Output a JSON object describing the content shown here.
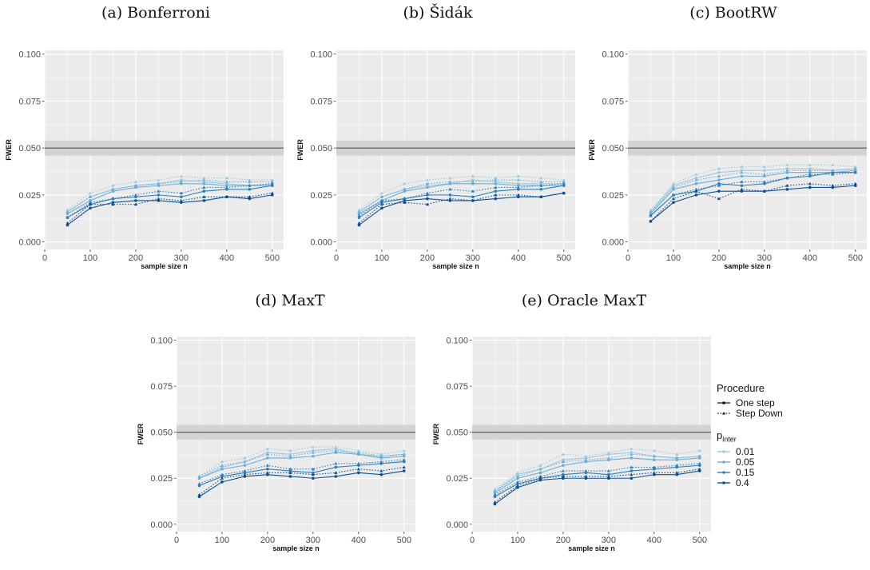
{
  "chart_data": [
    {
      "type": "line",
      "title": "(a) Bonferroni",
      "xlabel": "sample size n",
      "ylabel": "FWER",
      "xlim": [
        0,
        525
      ],
      "ylim": [
        -0.004,
        0.102
      ],
      "x_ticks": [
        "0",
        "100",
        "200",
        "300",
        "400",
        "500"
      ],
      "y_ticks": [
        "0.000",
        "0.025",
        "0.050",
        "0.075",
        "0.100"
      ],
      "reference_line": 0.05,
      "reference_band": [
        0.046,
        0.054
      ],
      "x": [
        50,
        100,
        150,
        200,
        250,
        300,
        350,
        400,
        450,
        500
      ],
      "series": [
        {
          "procedure": "One step",
          "p_inter": "0.01",
          "values": [
            0.016,
            0.024,
            0.028,
            0.03,
            0.031,
            0.033,
            0.032,
            0.031,
            0.03,
            0.031
          ]
        },
        {
          "procedure": "One step",
          "p_inter": "0.05",
          "values": [
            0.015,
            0.022,
            0.027,
            0.029,
            0.03,
            0.031,
            0.031,
            0.03,
            0.03,
            0.03
          ]
        },
        {
          "procedure": "One step",
          "p_inter": "0.15",
          "values": [
            0.013,
            0.02,
            0.023,
            0.024,
            0.025,
            0.024,
            0.027,
            0.028,
            0.028,
            0.03
          ]
        },
        {
          "procedure": "One step",
          "p_inter": "0.4",
          "values": [
            0.009,
            0.018,
            0.021,
            0.022,
            0.022,
            0.021,
            0.022,
            0.024,
            0.023,
            0.025
          ]
        },
        {
          "procedure": "Step Down",
          "p_inter": "0.01",
          "values": [
            0.017,
            0.026,
            0.03,
            0.032,
            0.033,
            0.035,
            0.034,
            0.034,
            0.033,
            0.033
          ]
        },
        {
          "procedure": "Step Down",
          "p_inter": "0.05",
          "values": [
            0.016,
            0.024,
            0.028,
            0.03,
            0.031,
            0.032,
            0.033,
            0.032,
            0.032,
            0.032
          ]
        },
        {
          "procedure": "Step Down",
          "p_inter": "0.15",
          "values": [
            0.013,
            0.021,
            0.023,
            0.025,
            0.027,
            0.026,
            0.029,
            0.029,
            0.03,
            0.031
          ]
        },
        {
          "procedure": "Step Down",
          "p_inter": "0.4",
          "values": [
            0.01,
            0.02,
            0.02,
            0.02,
            0.023,
            0.022,
            0.024,
            0.024,
            0.024,
            0.026
          ]
        }
      ]
    },
    {
      "type": "line",
      "title": "(b) Šidák",
      "xlabel": "sample size n",
      "ylabel": "FWER",
      "xlim": [
        0,
        525
      ],
      "ylim": [
        -0.004,
        0.102
      ],
      "x_ticks": [
        "0",
        "100",
        "200",
        "300",
        "400",
        "500"
      ],
      "y_ticks": [
        "0.000",
        "0.025",
        "0.050",
        "0.075",
        "0.100"
      ],
      "reference_line": 0.05,
      "reference_band": [
        0.046,
        0.054
      ],
      "x": [
        50,
        100,
        150,
        200,
        250,
        300,
        350,
        400,
        450,
        500
      ],
      "series": [
        {
          "procedure": "One step",
          "p_inter": "0.01",
          "values": [
            0.016,
            0.024,
            0.028,
            0.03,
            0.031,
            0.033,
            0.032,
            0.031,
            0.031,
            0.031
          ]
        },
        {
          "procedure": "One step",
          "p_inter": "0.05",
          "values": [
            0.015,
            0.022,
            0.027,
            0.029,
            0.031,
            0.031,
            0.031,
            0.03,
            0.03,
            0.03
          ]
        },
        {
          "procedure": "One step",
          "p_inter": "0.15",
          "values": [
            0.013,
            0.021,
            0.023,
            0.025,
            0.025,
            0.024,
            0.027,
            0.028,
            0.028,
            0.03
          ]
        },
        {
          "procedure": "One step",
          "p_inter": "0.4",
          "values": [
            0.009,
            0.018,
            0.022,
            0.023,
            0.022,
            0.022,
            0.023,
            0.024,
            0.024,
            0.026
          ]
        },
        {
          "procedure": "Step Down",
          "p_inter": "0.01",
          "values": [
            0.017,
            0.026,
            0.031,
            0.033,
            0.034,
            0.035,
            0.034,
            0.035,
            0.034,
            0.033
          ]
        },
        {
          "procedure": "Step Down",
          "p_inter": "0.05",
          "values": [
            0.016,
            0.024,
            0.028,
            0.031,
            0.032,
            0.032,
            0.033,
            0.033,
            0.032,
            0.032
          ]
        },
        {
          "procedure": "Step Down",
          "p_inter": "0.15",
          "values": [
            0.014,
            0.022,
            0.023,
            0.026,
            0.028,
            0.027,
            0.029,
            0.029,
            0.03,
            0.031
          ]
        },
        {
          "procedure": "Step Down",
          "p_inter": "0.4",
          "values": [
            0.01,
            0.02,
            0.021,
            0.02,
            0.023,
            0.022,
            0.025,
            0.025,
            0.024,
            0.026
          ]
        }
      ]
    },
    {
      "type": "line",
      "title": "(c) BootRW",
      "xlabel": "sample size n",
      "ylabel": "FWER",
      "xlim": [
        0,
        525
      ],
      "ylim": [
        -0.004,
        0.102
      ],
      "x_ticks": [
        "0",
        "100",
        "200",
        "300",
        "400",
        "500"
      ],
      "y_ticks": [
        "0.000",
        "0.025",
        "0.050",
        "0.075",
        "0.100"
      ],
      "reference_line": 0.05,
      "reference_band": [
        0.046,
        0.054
      ],
      "x": [
        50,
        100,
        150,
        200,
        250,
        300,
        350,
        400,
        450,
        500
      ],
      "series": [
        {
          "procedure": "One step",
          "p_inter": "0.01",
          "values": [
            0.016,
            0.03,
            0.034,
            0.037,
            0.038,
            0.038,
            0.039,
            0.039,
            0.038,
            0.039
          ]
        },
        {
          "procedure": "One step",
          "p_inter": "0.05",
          "values": [
            0.015,
            0.028,
            0.031,
            0.033,
            0.035,
            0.035,
            0.037,
            0.037,
            0.037,
            0.038
          ]
        },
        {
          "procedure": "One step",
          "p_inter": "0.15",
          "values": [
            0.014,
            0.025,
            0.027,
            0.031,
            0.03,
            0.031,
            0.034,
            0.035,
            0.037,
            0.037
          ]
        },
        {
          "procedure": "One step",
          "p_inter": "0.4",
          "values": [
            0.011,
            0.021,
            0.025,
            0.027,
            0.027,
            0.027,
            0.028,
            0.029,
            0.029,
            0.03
          ]
        },
        {
          "procedure": "Step Down",
          "p_inter": "0.01",
          "values": [
            0.017,
            0.031,
            0.036,
            0.039,
            0.04,
            0.04,
            0.041,
            0.041,
            0.041,
            0.04
          ]
        },
        {
          "procedure": "Step Down",
          "p_inter": "0.05",
          "values": [
            0.016,
            0.029,
            0.033,
            0.035,
            0.037,
            0.036,
            0.038,
            0.038,
            0.038,
            0.039
          ]
        },
        {
          "procedure": "Step Down",
          "p_inter": "0.15",
          "values": [
            0.014,
            0.025,
            0.028,
            0.03,
            0.032,
            0.032,
            0.034,
            0.036,
            0.036,
            0.037
          ]
        },
        {
          "procedure": "Step Down",
          "p_inter": "0.4",
          "values": [
            0.011,
            0.023,
            0.027,
            0.023,
            0.028,
            0.027,
            0.03,
            0.031,
            0.03,
            0.031
          ]
        }
      ]
    },
    {
      "type": "line",
      "title": "(d) MaxT",
      "xlabel": "sample size n",
      "ylabel": "FWER",
      "xlim": [
        0,
        525
      ],
      "ylim": [
        -0.004,
        0.102
      ],
      "x_ticks": [
        "0",
        "100",
        "200",
        "300",
        "400",
        "500"
      ],
      "y_ticks": [
        "0.000",
        "0.025",
        "0.050",
        "0.075",
        "0.100"
      ],
      "reference_line": 0.05,
      "reference_band": [
        0.046,
        0.054
      ],
      "x": [
        50,
        100,
        150,
        200,
        250,
        300,
        350,
        400,
        450,
        500
      ],
      "series": [
        {
          "procedure": "One step",
          "p_inter": "0.01",
          "values": [
            0.025,
            0.031,
            0.034,
            0.039,
            0.038,
            0.04,
            0.041,
            0.038,
            0.037,
            0.038
          ]
        },
        {
          "procedure": "One step",
          "p_inter": "0.05",
          "values": [
            0.025,
            0.03,
            0.032,
            0.036,
            0.036,
            0.037,
            0.039,
            0.038,
            0.036,
            0.037
          ]
        },
        {
          "procedure": "One step",
          "p_inter": "0.15",
          "values": [
            0.021,
            0.026,
            0.028,
            0.03,
            0.029,
            0.028,
            0.031,
            0.032,
            0.033,
            0.034
          ]
        },
        {
          "procedure": "One step",
          "p_inter": "0.4",
          "values": [
            0.015,
            0.023,
            0.026,
            0.027,
            0.026,
            0.025,
            0.026,
            0.028,
            0.027,
            0.029
          ]
        },
        {
          "procedure": "Step Down",
          "p_inter": "0.01",
          "values": [
            0.026,
            0.034,
            0.036,
            0.041,
            0.04,
            0.042,
            0.042,
            0.04,
            0.038,
            0.04
          ]
        },
        {
          "procedure": "Step Down",
          "p_inter": "0.05",
          "values": [
            0.026,
            0.032,
            0.034,
            0.038,
            0.037,
            0.039,
            0.04,
            0.039,
            0.037,
            0.038
          ]
        },
        {
          "procedure": "Step Down",
          "p_inter": "0.15",
          "values": [
            0.022,
            0.027,
            0.029,
            0.032,
            0.03,
            0.03,
            0.033,
            0.033,
            0.034,
            0.035
          ]
        },
        {
          "procedure": "Step Down",
          "p_inter": "0.4",
          "values": [
            0.016,
            0.025,
            0.027,
            0.028,
            0.028,
            0.027,
            0.028,
            0.03,
            0.029,
            0.031
          ]
        }
      ]
    },
    {
      "type": "line",
      "title": "(e) Oracle MaxT",
      "xlabel": "sample size n",
      "ylabel": "FWER",
      "xlim": [
        0,
        525
      ],
      "ylim": [
        -0.004,
        0.102
      ],
      "x_ticks": [
        "0",
        "100",
        "200",
        "300",
        "400",
        "500"
      ],
      "y_ticks": [
        "0.000",
        "0.025",
        "0.050",
        "0.075",
        "0.100"
      ],
      "reference_line": 0.05,
      "reference_band": [
        0.046,
        0.054
      ],
      "x": [
        50,
        100,
        150,
        200,
        250,
        300,
        350,
        400,
        450,
        500
      ],
      "series": [
        {
          "procedure": "One step",
          "p_inter": "0.01",
          "values": [
            0.018,
            0.027,
            0.03,
            0.035,
            0.036,
            0.038,
            0.039,
            0.037,
            0.036,
            0.037
          ]
        },
        {
          "procedure": "One step",
          "p_inter": "0.05",
          "values": [
            0.017,
            0.025,
            0.028,
            0.032,
            0.034,
            0.035,
            0.036,
            0.035,
            0.035,
            0.036
          ]
        },
        {
          "procedure": "One step",
          "p_inter": "0.15",
          "values": [
            0.015,
            0.022,
            0.025,
            0.027,
            0.028,
            0.027,
            0.029,
            0.03,
            0.031,
            0.032
          ]
        },
        {
          "procedure": "One step",
          "p_inter": "0.4",
          "values": [
            0.011,
            0.02,
            0.024,
            0.025,
            0.025,
            0.025,
            0.025,
            0.027,
            0.027,
            0.029
          ]
        },
        {
          "procedure": "Step Down",
          "p_inter": "0.01",
          "values": [
            0.019,
            0.028,
            0.032,
            0.038,
            0.037,
            0.039,
            0.041,
            0.04,
            0.038,
            0.04
          ]
        },
        {
          "procedure": "Step Down",
          "p_inter": "0.05",
          "values": [
            0.018,
            0.026,
            0.03,
            0.034,
            0.035,
            0.036,
            0.038,
            0.037,
            0.036,
            0.037
          ]
        },
        {
          "procedure": "Step Down",
          "p_inter": "0.15",
          "values": [
            0.016,
            0.023,
            0.026,
            0.029,
            0.029,
            0.029,
            0.031,
            0.031,
            0.032,
            0.033
          ]
        },
        {
          "procedure": "Step Down",
          "p_inter": "0.4",
          "values": [
            0.012,
            0.021,
            0.025,
            0.026,
            0.026,
            0.026,
            0.027,
            0.028,
            0.028,
            0.03
          ]
        }
      ]
    }
  ],
  "legend": {
    "procedure_title": "Procedure",
    "procedure_items": [
      "One step",
      "Step Down"
    ],
    "p_title_main": "p",
    "p_title_sub": "inter",
    "p_items": [
      "0.01",
      "0.05",
      "0.15",
      "0.4"
    ]
  },
  "colors": {
    "0.01": "#9ecae1",
    "0.05": "#6baed6",
    "0.15": "#2f7ebc",
    "0.4": "#0d4f93",
    "panel_bg": "#ebebeb",
    "grid": "#ffffff",
    "reference_line": "#6a6a6a",
    "reference_band": "#d3d3d3"
  }
}
